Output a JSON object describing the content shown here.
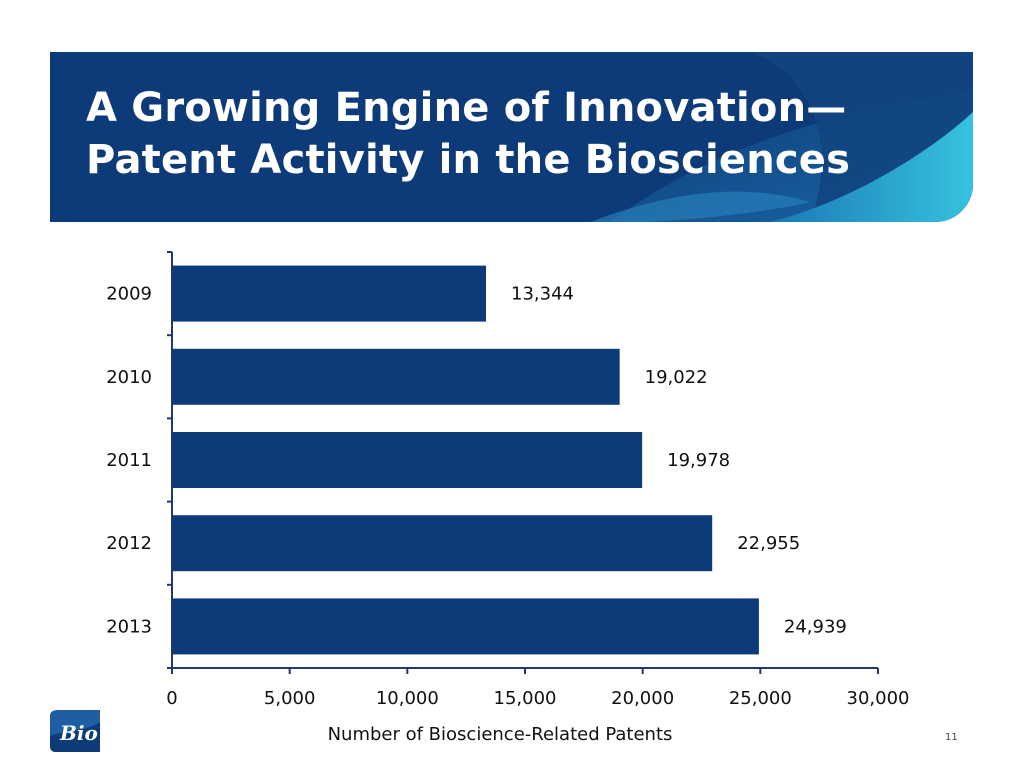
{
  "slide": {
    "title_line1": "A Growing Engine of Innovation—",
    "title_line2": "Patent Activity in the Biosciences",
    "page_number": "11",
    "logo_text": "Bio"
  },
  "colors": {
    "banner": "#0d3a78",
    "bar": "#0d3a78",
    "accent": "#29b6d9",
    "axis": "#1f3a68"
  },
  "chart_data": {
    "type": "bar",
    "orientation": "horizontal",
    "categories": [
      "2009",
      "2010",
      "2011",
      "2012",
      "2013"
    ],
    "values": [
      13344,
      19022,
      19978,
      22955,
      24939
    ],
    "value_labels": [
      "13,344",
      "19,022",
      "19,978",
      "22,955",
      "24,939"
    ],
    "xlabel": "Number of Bioscience-Related Patents",
    "ylabel": "",
    "xlim": [
      0,
      30000
    ],
    "xticks": [
      0,
      5000,
      10000,
      15000,
      20000,
      25000,
      30000
    ],
    "xtick_labels": [
      "0",
      "5,000",
      "10,000",
      "15,000",
      "20,000",
      "25,000",
      "30,000"
    ],
    "grid": false,
    "legend": "none"
  }
}
